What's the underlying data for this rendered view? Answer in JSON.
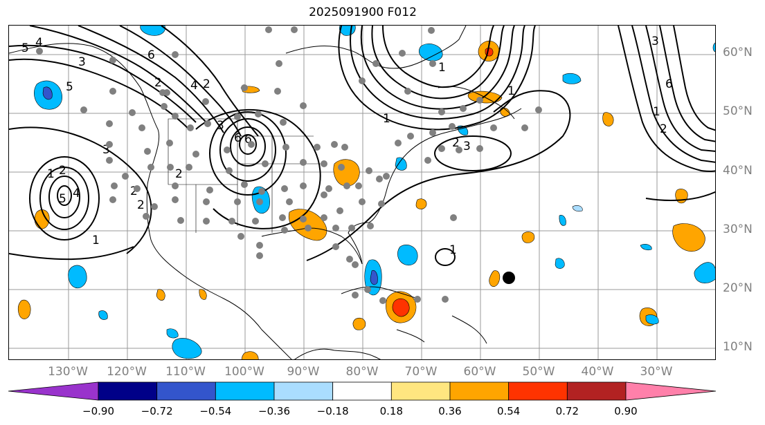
{
  "title": "2025091900 F012",
  "latitude_labels": [
    "60°N",
    "50°N",
    "40°N",
    "30°N",
    "20°N",
    "10°N"
  ],
  "longitude_labels": [
    "130°W",
    "120°W",
    "110°W",
    "100°W",
    "90°W",
    "80°W",
    "70°W",
    "60°W",
    "50°W",
    "40°W",
    "30°W"
  ],
  "colorbar": {
    "tick_labels": [
      "−0.90",
      "−0.72",
      "−0.54",
      "−0.36",
      "−0.18",
      "0.18",
      "0.36",
      "0.54",
      "0.72",
      "0.90"
    ],
    "colors": [
      "#9933cc",
      "#000088",
      "#3355cc",
      "#00bbff",
      "#aaddff",
      "#ffffff",
      "#ffe680",
      "#ffa500",
      "#ff3300",
      "#b22222",
      "#ff80aa"
    ]
  },
  "contour_labels": [
    "1",
    "2",
    "3",
    "4",
    "5",
    "6",
    "1",
    "2",
    "3",
    "4",
    "5",
    "6",
    "1",
    "2",
    "3",
    "6",
    "2",
    "3",
    "4",
    "1",
    "2",
    "5",
    "1",
    "1",
    "2",
    "3",
    "4",
    "5",
    "6",
    "1",
    "2",
    "3",
    "4",
    "1"
  ],
  "station_marker": "large black dot near 22°N 55°W",
  "observation_markers": "grey dots"
}
